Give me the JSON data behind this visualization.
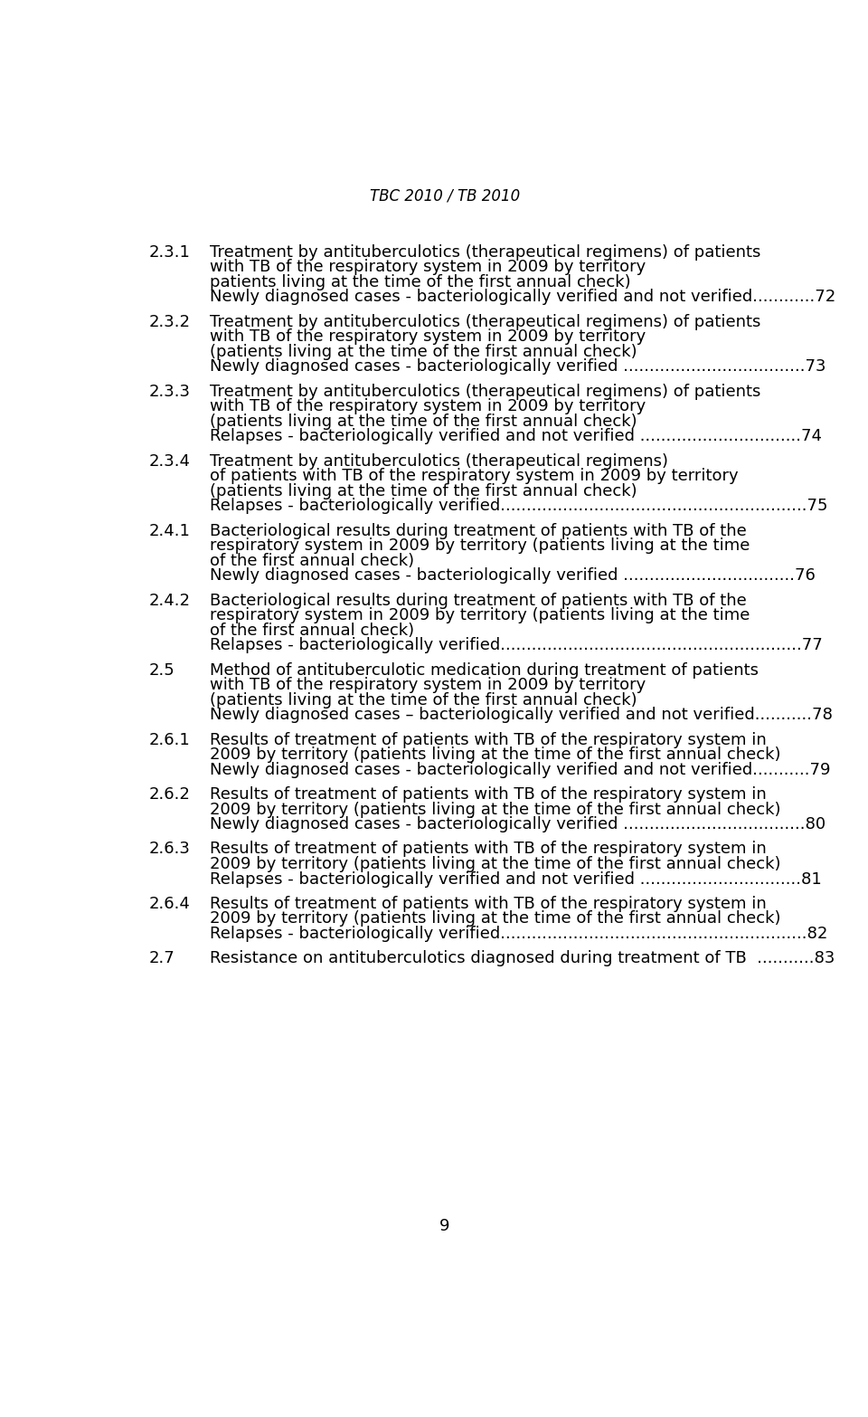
{
  "title": "TBC 2010 / TB 2010",
  "background_color": "#ffffff",
  "text_color": "#000000",
  "entries": [
    {
      "number": "2.3.1",
      "lines": [
        "Treatment by antituberculotics (therapeutical regimens) of patients",
        "with TB of the respiratory system in 2009 by territory",
        "patients living at the time of the first annual check)",
        "Newly diagnosed cases - bacteriologically verified and not verified............72"
      ]
    },
    {
      "number": "2.3.2",
      "lines": [
        "Treatment by antituberculotics (therapeutical regimens) of patients",
        "with TB of the respiratory system in 2009 by territory",
        "(patients living at the time of the first annual check)",
        "Newly diagnosed cases - bacteriologically verified ...................................73"
      ]
    },
    {
      "number": "2.3.3",
      "lines": [
        "Treatment by antituberculotics (therapeutical regimens) of patients",
        "with TB of the respiratory system in 2009 by territory",
        "(patients living at the time of the first annual check)",
        "Relapses - bacteriologically verified and not verified ...............................74"
      ]
    },
    {
      "number": "2.3.4",
      "lines": [
        "Treatment by antituberculotics (therapeutical regimens)",
        "of patients with TB of the respiratory system in 2009 by territory",
        "(patients living at the time of the first annual check)",
        "Relapses - bacteriologically verified...........................................................75"
      ]
    },
    {
      "number": "2.4.1",
      "lines": [
        "Bacteriological results during treatment of patients with TB of the",
        "respiratory system in 2009 by territory (patients living at the time",
        "of the first annual check)",
        "Newly diagnosed cases - bacteriologically verified .................................76"
      ]
    },
    {
      "number": "2.4.2",
      "lines": [
        "Bacteriological results during treatment of patients with TB of the",
        "respiratory system in 2009 by territory (patients living at the time",
        "of the first annual check)",
        "Relapses - bacteriologically verified..........................................................77"
      ]
    },
    {
      "number": "2.5",
      "lines": [
        "Method of antituberculotic medication during treatment of patients",
        "with TB of the respiratory system in 2009 by territory",
        "(patients living at the time of the first annual check)",
        "Newly diagnosed cases – bacteriologically verified and not verified...........78"
      ]
    },
    {
      "number": "2.6.1",
      "lines": [
        "Results of treatment of patients with TB of the respiratory system in",
        "2009 by territory (patients living at the time of the first annual check)",
        "Newly diagnosed cases - bacteriologically verified and not verified...........79"
      ]
    },
    {
      "number": "2.6.2",
      "lines": [
        "Results of treatment of patients with TB of the respiratory system in",
        "2009 by territory (patients living at the time of the first annual check)",
        "Newly diagnosed cases - bacteriologically verified ...................................80"
      ]
    },
    {
      "number": "2.6.3",
      "lines": [
        "Results of treatment of patients with TB of the respiratory system in",
        "2009 by territory (patients living at the time of the first annual check)",
        "Relapses - bacteriologically verified and not verified ...............................81"
      ]
    },
    {
      "number": "2.6.4",
      "lines": [
        "Results of treatment of patients with TB of the respiratory system in",
        "2009 by territory (patients living at the time of the first annual check)",
        "Relapses - bacteriologically verified...........................................................82"
      ]
    },
    {
      "number": "2.7",
      "lines": [
        "Resistance on antituberculotics diagnosed during treatment of TB  ...........83"
      ]
    }
  ],
  "page_number": "9",
  "title_fontsize": 12,
  "body_fontsize": 13,
  "number_fontsize": 13
}
